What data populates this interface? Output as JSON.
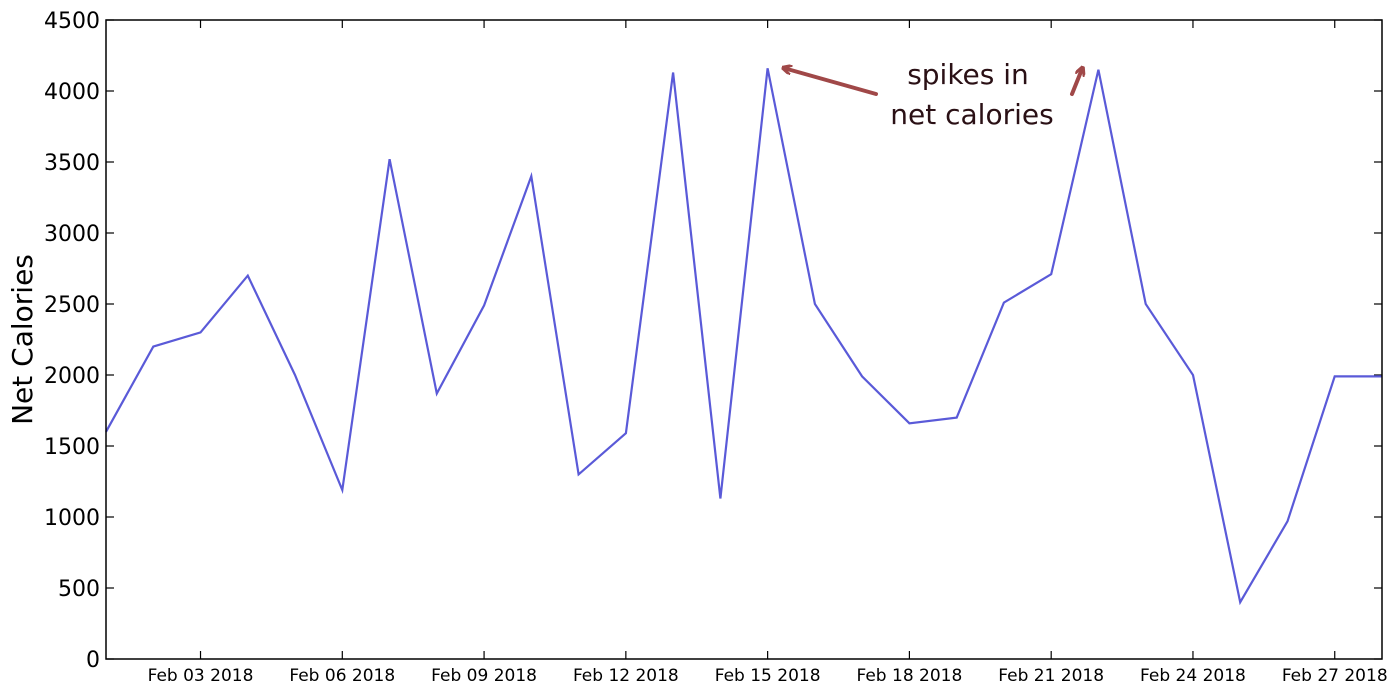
{
  "chart_data": {
    "type": "line",
    "ylabel": "Net Calories",
    "xlabel": "",
    "title": "",
    "ylim": [
      0,
      4500
    ],
    "yticks": [
      0,
      500,
      1000,
      1500,
      2000,
      2500,
      3000,
      3500,
      4000,
      4500
    ],
    "xlim": [
      "2018-02-01",
      "2018-02-28"
    ],
    "xticks": [
      {
        "date": "2018-02-03",
        "label": "Feb 03 2018"
      },
      {
        "date": "2018-02-06",
        "label": "Feb 06 2018"
      },
      {
        "date": "2018-02-09",
        "label": "Feb 09 2018"
      },
      {
        "date": "2018-02-12",
        "label": "Feb 12 2018"
      },
      {
        "date": "2018-02-15",
        "label": "Feb 15 2018"
      },
      {
        "date": "2018-02-18",
        "label": "Feb 18 2018"
      },
      {
        "date": "2018-02-21",
        "label": "Feb 21 2018"
      },
      {
        "date": "2018-02-24",
        "label": "Feb 24 2018"
      },
      {
        "date": "2018-02-27",
        "label": "Feb 27 2018"
      }
    ],
    "grid": false,
    "series": [
      {
        "color": "#5a5ad8",
        "x": [
          "2018-02-01",
          "2018-02-02",
          "2018-02-03",
          "2018-02-04",
          "2018-02-05",
          "2018-02-06",
          "2018-02-07",
          "2018-02-08",
          "2018-02-09",
          "2018-02-10",
          "2018-02-11",
          "2018-02-12",
          "2018-02-13",
          "2018-02-14",
          "2018-02-15",
          "2018-02-16",
          "2018-02-17",
          "2018-02-18",
          "2018-02-19",
          "2018-02-20",
          "2018-02-21",
          "2018-02-22",
          "2018-02-23",
          "2018-02-24",
          "2018-02-25",
          "2018-02-26",
          "2018-02-27",
          "2018-02-28"
        ],
        "values": [
          1600,
          2200,
          2300,
          2700,
          2000,
          1190,
          3520,
          1870,
          2490,
          3400,
          1300,
          1590,
          4130,
          1130,
          4160,
          2500,
          1990,
          1660,
          1700,
          2510,
          2710,
          4150,
          2500,
          2000,
          400,
          970,
          1990,
          1990
        ]
      }
    ],
    "annotation": {
      "lines": [
        "spikes in",
        "net calories"
      ],
      "arrow_color": "#a04848",
      "arrows_point_to": [
        "2018-02-15",
        "2018-02-22"
      ]
    }
  }
}
